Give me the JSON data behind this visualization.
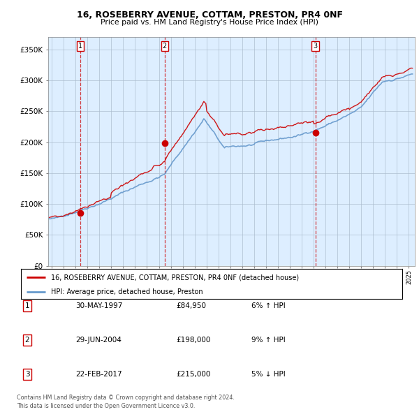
{
  "title": "16, ROSEBERRY AVENUE, COTTAM, PRESTON, PR4 0NF",
  "subtitle": "Price paid vs. HM Land Registry's House Price Index (HPI)",
  "legend_line1": "16, ROSEBERRY AVENUE, COTTAM, PRESTON, PR4 0NF (detached house)",
  "legend_line2": "HPI: Average price, detached house, Preston",
  "sale_dates": [
    1997.41,
    2004.49,
    2017.15
  ],
  "sale_prices": [
    84950,
    198000,
    215000
  ],
  "sale_labels": [
    "1",
    "2",
    "3"
  ],
  "table_rows": [
    [
      "1",
      "30-MAY-1997",
      "£84,950",
      "6% ↑ HPI"
    ],
    [
      "2",
      "29-JUN-2004",
      "£198,000",
      "9% ↑ HPI"
    ],
    [
      "3",
      "22-FEB-2017",
      "£215,000",
      "5% ↓ HPI"
    ]
  ],
  "footnote1": "Contains HM Land Registry data © Crown copyright and database right 2024.",
  "footnote2": "This data is licensed under the Open Government Licence v3.0.",
  "red_color": "#cc0000",
  "blue_color": "#6699cc",
  "bg_color": "#ddeeff",
  "grid_color": "#aabbcc",
  "ylim": [
    0,
    370000
  ],
  "yticks": [
    0,
    50000,
    100000,
    150000,
    200000,
    250000,
    300000,
    350000
  ],
  "xlim_start": 1994.7,
  "xlim_end": 2025.5
}
